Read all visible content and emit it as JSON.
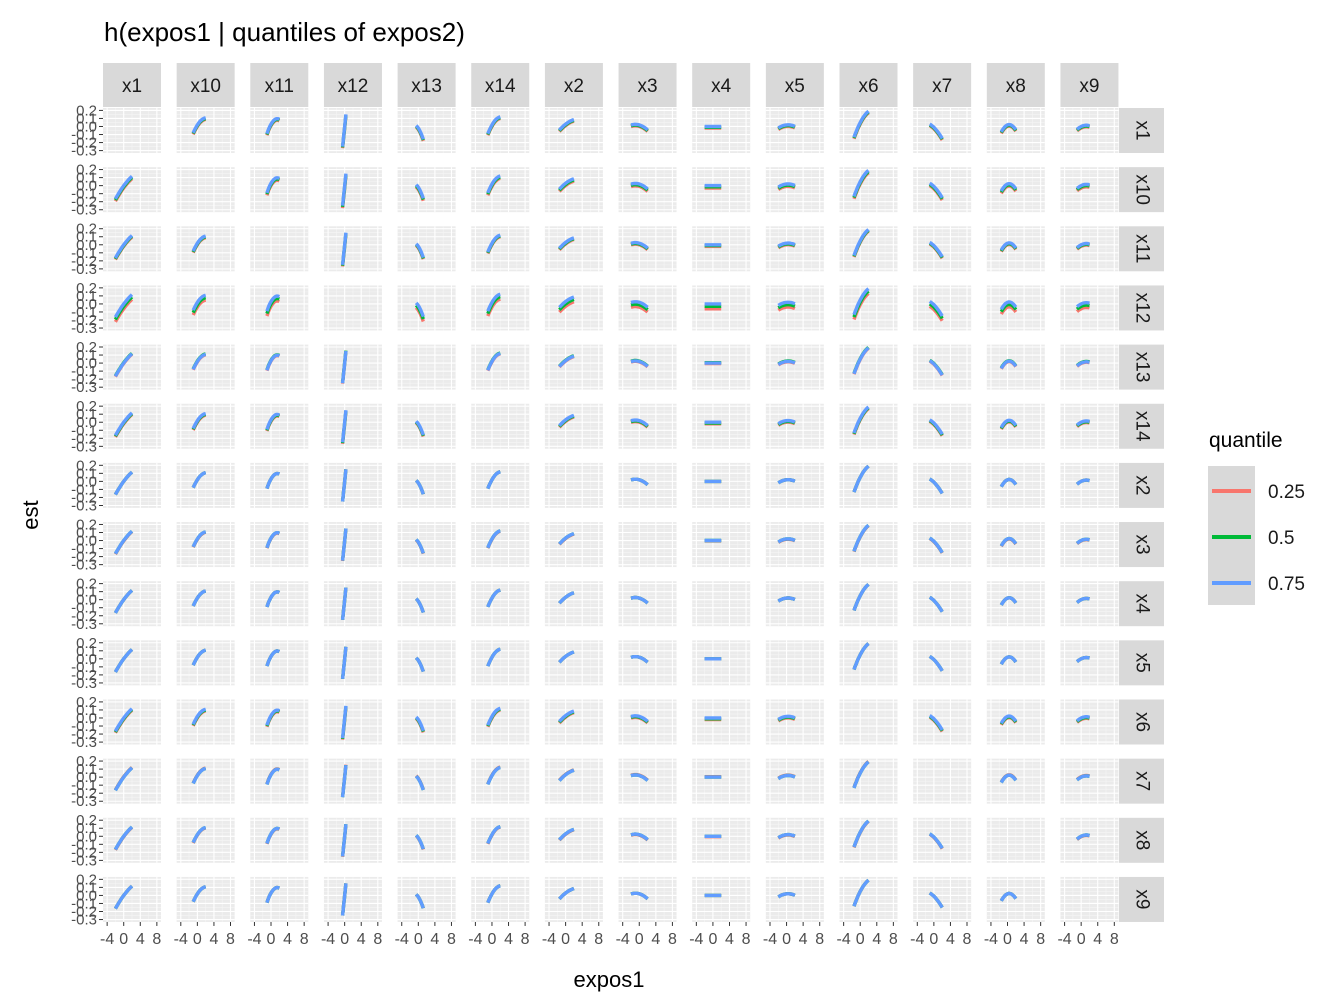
{
  "chart_data": {
    "type": "line",
    "title": "h(expos1 | quantiles of expos2)",
    "xlabel": "expos1",
    "ylabel": "est",
    "facet_columns": [
      "x1",
      "x10",
      "x11",
      "x12",
      "x13",
      "x14",
      "x2",
      "x3",
      "x4",
      "x5",
      "x6",
      "x7",
      "x8",
      "x9"
    ],
    "facet_rows": [
      "x1",
      "x10",
      "x11",
      "x12",
      "x13",
      "x14",
      "x2",
      "x3",
      "x4",
      "x5",
      "x6",
      "x7",
      "x8",
      "x9"
    ],
    "x_ticks": [
      "-4",
      "0",
      "4",
      "8"
    ],
    "y_ticks": [
      "0.2",
      "0.1",
      "0.0",
      "-0.1",
      "-0.2",
      "-0.3"
    ],
    "xlim": [
      -5,
      9
    ],
    "ylim": [
      -0.33,
      0.23
    ],
    "grid": true,
    "legend": {
      "title": "quantile",
      "position": "right",
      "entries": [
        {
          "name": "0.25",
          "color": "#F8766D"
        },
        {
          "name": "0.5",
          "color": "#00BA38"
        },
        {
          "name": "0.75",
          "color": "#619CFF"
        }
      ]
    },
    "series_colors": {
      "0.25": "#F8766D",
      "0.5": "#00BA38",
      "0.75": "#619CFF"
    },
    "x_range_by_column": {
      "x1": [
        -2,
        2
      ],
      "x10": [
        -1,
        2
      ],
      "x11": [
        -1,
        2
      ],
      "x12": [
        -0.5,
        0.3
      ],
      "x13": [
        -0.5,
        1.2
      ],
      "x14": [
        -1,
        2
      ],
      "x2": [
        -1.5,
        2
      ],
      "x3": [
        -2,
        2
      ],
      "x4": [
        -2,
        2
      ],
      "x5": [
        -2,
        2
      ],
      "x6": [
        -1.5,
        2
      ],
      "x7": [
        -1,
        2
      ],
      "x8": [
        -1.5,
        2
      ],
      "x9": [
        -1,
        2
      ]
    },
    "effect_shapes": {
      "x1": {
        "a": 0.0,
        "b": 0.07,
        "c": -0.006
      },
      "x10": {
        "a": 0.02,
        "b": 0.08,
        "c": -0.018
      },
      "x11": {
        "a": 0.03,
        "b": 0.09,
        "c": -0.03
      },
      "x12": {
        "a": 0.0,
        "b": 0.5,
        "c": 0.0
      },
      "x13": {
        "a": -0.02,
        "b": -0.08,
        "c": -0.03
      },
      "x14": {
        "a": 0.02,
        "b": 0.09,
        "c": -0.02
      },
      "x2": {
        "a": 0.03,
        "b": 0.04,
        "c": -0.006
      },
      "x3": {
        "a": 0.02,
        "b": -0.015,
        "c": -0.008
      },
      "x4": {
        "a": 0.0,
        "b": 0.0,
        "c": 0.0
      },
      "x5": {
        "a": 0.02,
        "b": 0.005,
        "c": -0.007
      },
      "x6": {
        "a": 0.05,
        "b": 0.1,
        "c": -0.015
      },
      "x7": {
        "a": -0.01,
        "b": -0.05,
        "c": -0.01
      },
      "x8": {
        "a": 0.02,
        "b": 0.02,
        "c": -0.025
      },
      "x9": {
        "a": 0.0,
        "b": 0.025,
        "c": -0.01
      }
    },
    "quantile_offsets_by_row": {
      "x1": {
        "0.25": -0.02,
        "0.5": -0.01,
        "0.75": 0.0
      },
      "x10": {
        "0.25": -0.03,
        "0.5": -0.015,
        "0.75": 0.0
      },
      "x11": {
        "0.25": -0.02,
        "0.5": -0.01,
        "0.75": 0.0
      },
      "x12": {
        "0.25": -0.06,
        "0.5": -0.03,
        "0.75": 0.0
      },
      "x13": {
        "0.25": -0.005,
        "0.5": 0.005,
        "0.75": 0.0
      },
      "x14": {
        "0.25": -0.02,
        "0.5": -0.01,
        "0.75": 0.0
      },
      "x2": {
        "0.25": 0.0,
        "0.5": 0.0,
        "0.75": 0.0
      },
      "x3": {
        "0.25": -0.005,
        "0.5": 0.0,
        "0.75": 0.0
      },
      "x4": {
        "0.25": 0.0,
        "0.5": 0.0,
        "0.75": 0.0
      },
      "x5": {
        "0.25": 0.0,
        "0.5": 0.0,
        "0.75": 0.0
      },
      "x6": {
        "0.25": -0.02,
        "0.5": -0.01,
        "0.75": 0.0
      },
      "x7": {
        "0.25": 0.005,
        "0.5": 0.0,
        "0.75": 0.0
      },
      "x8": {
        "0.25": -0.005,
        "0.5": 0.0,
        "0.75": 0.0
      },
      "x9": {
        "0.25": 0.0,
        "0.5": 0.0,
        "0.75": 0.0
      }
    }
  }
}
